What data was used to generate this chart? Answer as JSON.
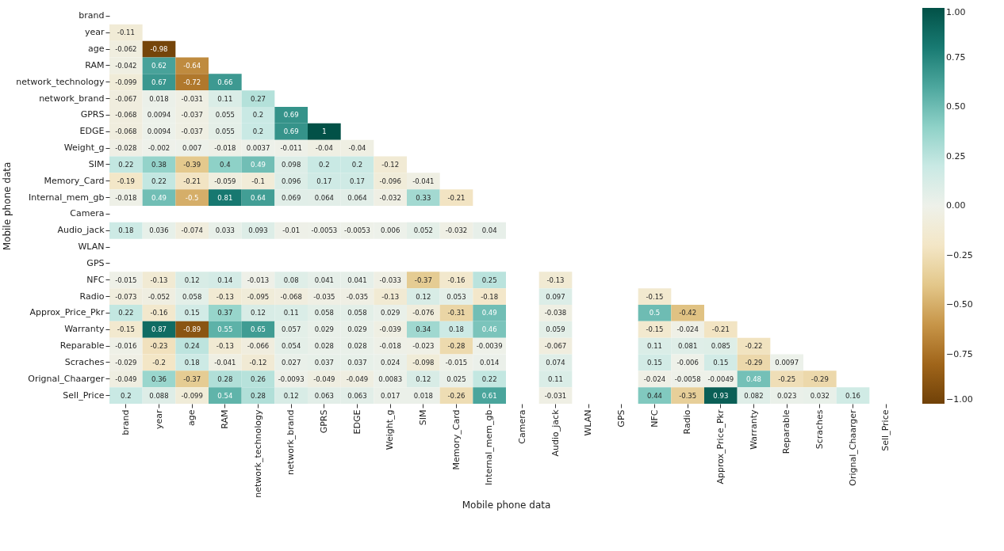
{
  "chart_data": {
    "type": "heatmap",
    "xlabel": "Mobile phone data",
    "ylabel": "Mobile phone data",
    "categories": [
      "brand",
      "year",
      "age",
      "RAM",
      "network_technology",
      "network_brand",
      "GPRS",
      "EDGE",
      "Weight_g",
      "SIM",
      "Memory_Card",
      "Internal_mem_gb",
      "Camera",
      "Audio_jack",
      "WLAN",
      "GPS",
      "NFC",
      "Radio",
      "Approx_Price_Pkr",
      "Warranty",
      "Reparable",
      "Scraches",
      "Orignal_Chaarger",
      "Sell_Price"
    ],
    "y_categories": [
      "brand",
      "year",
      "age",
      "RAM",
      "network_technology",
      "network_brand",
      "GPRS",
      "EDGE",
      "Weight_g",
      "SIM",
      "Memory_Card",
      "Internal_mem_gb",
      "Camera",
      "Audio_jack",
      "WLAN",
      "GPS",
      "NFC",
      "Radio",
      "Approx_Price_Pkr",
      "Warranty",
      "Reparable",
      "Scraches",
      "Orignal_Chaarger",
      "Sell_Price"
    ],
    "cells": [
      [
        null,
        null,
        null,
        null,
        null,
        null,
        null,
        null,
        null,
        null,
        null,
        null,
        null,
        null,
        null,
        null,
        null,
        null,
        null,
        null,
        null,
        null,
        null,
        null
      ],
      [
        -0.11,
        null,
        null,
        null,
        null,
        null,
        null,
        null,
        null,
        null,
        null,
        null,
        null,
        null,
        null,
        null,
        null,
        null,
        null,
        null,
        null,
        null,
        null,
        null
      ],
      [
        -0.062,
        -0.98,
        null,
        null,
        null,
        null,
        null,
        null,
        null,
        null,
        null,
        null,
        null,
        null,
        null,
        null,
        null,
        null,
        null,
        null,
        null,
        null,
        null,
        null
      ],
      [
        -0.042,
        0.62,
        -0.64,
        null,
        null,
        null,
        null,
        null,
        null,
        null,
        null,
        null,
        null,
        null,
        null,
        null,
        null,
        null,
        null,
        null,
        null,
        null,
        null,
        null
      ],
      [
        -0.099,
        0.67,
        -0.72,
        0.66,
        null,
        null,
        null,
        null,
        null,
        null,
        null,
        null,
        null,
        null,
        null,
        null,
        null,
        null,
        null,
        null,
        null,
        null,
        null,
        null
      ],
      [
        -0.067,
        0.018,
        -0.031,
        0.11,
        0.27,
        null,
        null,
        null,
        null,
        null,
        null,
        null,
        null,
        null,
        null,
        null,
        null,
        null,
        null,
        null,
        null,
        null,
        null,
        null
      ],
      [
        -0.068,
        0.0094,
        -0.037,
        0.055,
        0.2,
        0.69,
        null,
        null,
        null,
        null,
        null,
        null,
        null,
        null,
        null,
        null,
        null,
        null,
        null,
        null,
        null,
        null,
        null,
        null
      ],
      [
        -0.068,
        0.0094,
        -0.037,
        0.055,
        0.2,
        0.69,
        1,
        null,
        null,
        null,
        null,
        null,
        null,
        null,
        null,
        null,
        null,
        null,
        null,
        null,
        null,
        null,
        null,
        null
      ],
      [
        -0.028,
        -0.002,
        0.007,
        -0.018,
        0.0037,
        -0.011,
        -0.04,
        -0.04,
        null,
        null,
        null,
        null,
        null,
        null,
        null,
        null,
        null,
        null,
        null,
        null,
        null,
        null,
        null,
        null
      ],
      [
        0.22,
        0.38,
        -0.39,
        0.4,
        0.49,
        0.098,
        0.2,
        0.2,
        -0.12,
        null,
        null,
        null,
        null,
        null,
        null,
        null,
        null,
        null,
        null,
        null,
        null,
        null,
        null,
        null
      ],
      [
        -0.19,
        0.22,
        -0.21,
        -0.059,
        -0.1,
        0.096,
        0.17,
        0.17,
        -0.096,
        -0.041,
        null,
        null,
        null,
        null,
        null,
        null,
        null,
        null,
        null,
        null,
        null,
        null,
        null,
        null
      ],
      [
        -0.018,
        0.49,
        -0.5,
        0.81,
        0.64,
        0.069,
        0.064,
        0.064,
        -0.032,
        0.33,
        -0.21,
        null,
        null,
        null,
        null,
        null,
        null,
        null,
        null,
        null,
        null,
        null,
        null,
        null
      ],
      [
        null,
        null,
        null,
        null,
        null,
        null,
        null,
        null,
        null,
        null,
        null,
        null,
        null,
        null,
        null,
        null,
        null,
        null,
        null,
        null,
        null,
        null,
        null,
        null
      ],
      [
        0.18,
        0.036,
        -0.074,
        0.033,
        0.093,
        -0.01,
        -0.0053,
        -0.0053,
        0.006,
        0.052,
        -0.032,
        0.04,
        null,
        null,
        null,
        null,
        null,
        null,
        null,
        null,
        null,
        null,
        null,
        null
      ],
      [
        null,
        null,
        null,
        null,
        null,
        null,
        null,
        null,
        null,
        null,
        null,
        null,
        null,
        null,
        null,
        null,
        null,
        null,
        null,
        null,
        null,
        null,
        null,
        null
      ],
      [
        null,
        null,
        null,
        null,
        null,
        null,
        null,
        null,
        null,
        null,
        null,
        null,
        null,
        null,
        null,
        null,
        null,
        null,
        null,
        null,
        null,
        null,
        null,
        null
      ],
      [
        -0.015,
        -0.13,
        0.12,
        0.14,
        -0.013,
        0.08,
        0.041,
        0.041,
        -0.033,
        -0.37,
        -0.16,
        0.25,
        null,
        -0.13,
        null,
        null,
        null,
        null,
        null,
        null,
        null,
        null,
        null,
        null
      ],
      [
        -0.073,
        -0.052,
        0.058,
        -0.13,
        -0.095,
        -0.068,
        -0.035,
        -0.035,
        -0.13,
        0.12,
        0.053,
        -0.18,
        null,
        0.097,
        null,
        null,
        -0.15,
        null,
        null,
        null,
        null,
        null,
        null,
        null
      ],
      [
        0.22,
        -0.16,
        0.15,
        0.37,
        0.12,
        0.11,
        0.058,
        0.058,
        0.029,
        -0.076,
        -0.31,
        0.49,
        null,
        -0.038,
        null,
        null,
        0.5,
        -0.42,
        null,
        null,
        null,
        null,
        null,
        null
      ],
      [
        -0.15,
        0.87,
        -0.89,
        0.55,
        0.65,
        0.057,
        0.029,
        0.029,
        -0.039,
        0.34,
        0.18,
        0.46,
        null,
        0.059,
        null,
        null,
        -0.15,
        -0.024,
        -0.21,
        null,
        null,
        null,
        null,
        null
      ],
      [
        -0.016,
        -0.23,
        0.24,
        -0.13,
        -0.066,
        0.054,
        0.028,
        0.028,
        -0.018,
        -0.023,
        -0.28,
        -0.0039,
        null,
        -0.067,
        null,
        null,
        0.11,
        0.081,
        0.085,
        -0.22,
        null,
        null,
        null,
        null
      ],
      [
        -0.029,
        -0.2,
        0.18,
        -0.041,
        -0.12,
        0.027,
        0.037,
        0.037,
        0.024,
        -0.098,
        -0.015,
        0.014,
        null,
        0.074,
        null,
        null,
        0.15,
        -0.006,
        0.15,
        -0.29,
        0.0097,
        null,
        null,
        null
      ],
      [
        -0.049,
        0.36,
        -0.37,
        0.28,
        0.26,
        -0.0093,
        -0.049,
        -0.049,
        0.0083,
        0.12,
        0.025,
        0.22,
        null,
        0.11,
        null,
        null,
        -0.024,
        -0.0058,
        -0.0049,
        0.48,
        -0.25,
        -0.29,
        null,
        null
      ],
      [
        0.2,
        0.088,
        -0.099,
        0.54,
        0.28,
        0.12,
        0.063,
        0.063,
        0.017,
        0.018,
        -0.26,
        0.61,
        null,
        -0.031,
        null,
        null,
        0.44,
        -0.35,
        0.93,
        0.082,
        0.023,
        0.032,
        0.16,
        null
      ]
    ],
    "data_labels": true,
    "clim": [
      -1,
      1
    ],
    "cticks": [
      {
        "value": -1,
        "label": "−1.00"
      },
      {
        "value": -0.75,
        "label": "−0.75"
      },
      {
        "value": -0.5,
        "label": "−0.50"
      },
      {
        "value": -0.25,
        "label": "−0.25"
      },
      {
        "value": 0,
        "label": "0.00"
      },
      {
        "value": 0.25,
        "label": "0.25"
      },
      {
        "value": 0.5,
        "label": "0.50"
      },
      {
        "value": 0.75,
        "label": "0.75"
      },
      {
        "value": 1,
        "label": "1.00"
      }
    ]
  }
}
